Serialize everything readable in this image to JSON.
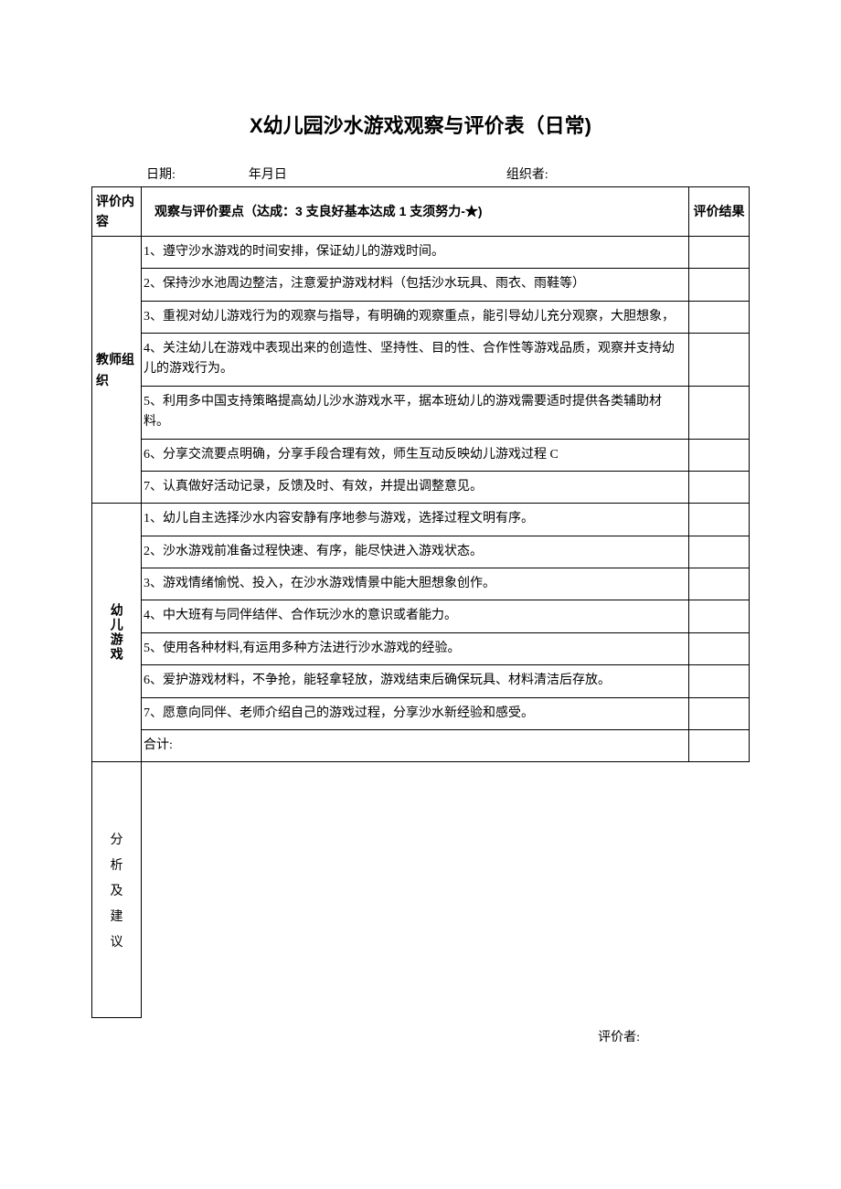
{
  "title": "X幼儿园沙水游戏观察与评价表（日常)",
  "header": {
    "date_label": "日期:",
    "date_value": "年月日",
    "organizer_label": "组织者:"
  },
  "table_header": {
    "category_label": "评价内容",
    "points_label": "观察与评价要点（达成：3 支良好基本达成 1 支须努力-★)",
    "result_label": "评价结果"
  },
  "sections": {
    "teacher": {
      "label": "教师组织",
      "items": [
        "1、遵守沙水游戏的时间安排，保证幼儿的游戏时间。",
        "2、保持沙水池周边整洁，注意爱护游戏材料（包括沙水玩具、雨衣、雨鞋等）",
        "3、重视对幼儿游戏行为的观察与指导，有明确的观察重点，能引导幼儿充分观察，大胆想象，",
        "4、关注幼儿在游戏中表现出来的创造性、坚持性、目的性、合作性等游戏品质，观察并支持幼儿的游戏行为。",
        "5、利用多中国支持策略提高幼儿沙水游戏水平，据本班幼儿的游戏需要适时提供各类辅助材料。",
        "6、分享交流要点明确，分享手段合理有效，师生互动反映幼儿游戏过程 C",
        "7、认真做好活动记录，反馈及时、有效，并提出调整意见。"
      ]
    },
    "child": {
      "label": "幼儿游戏",
      "items": [
        "1、幼儿自主选择沙水内容安静有序地参与游戏，选择过程文明有序。",
        "2、沙水游戏前准备过程快速、有序，能尽快进入游戏状态。",
        "3、游戏情绪愉悦、投入，在沙水游戏情景中能大胆想象创作。",
        "4、中大班有与同伴结伴、合作玩沙水的意识或者能力。",
        "5、使用各种材料,有运用多种方法进行沙水游戏的经验。",
        "6、爱护游戏材料，不争抢，能轻拿轻放，游戏结束后确保玩具、材料清洁后存放。",
        "7、愿意向同伴、老师介绍自己的游戏过程，分享沙水新经验和感受。"
      ],
      "total_label": "合计:"
    },
    "suggestion": {
      "label": "分析及建议"
    }
  },
  "footer": {
    "evaluator_label": "评价者:"
  }
}
